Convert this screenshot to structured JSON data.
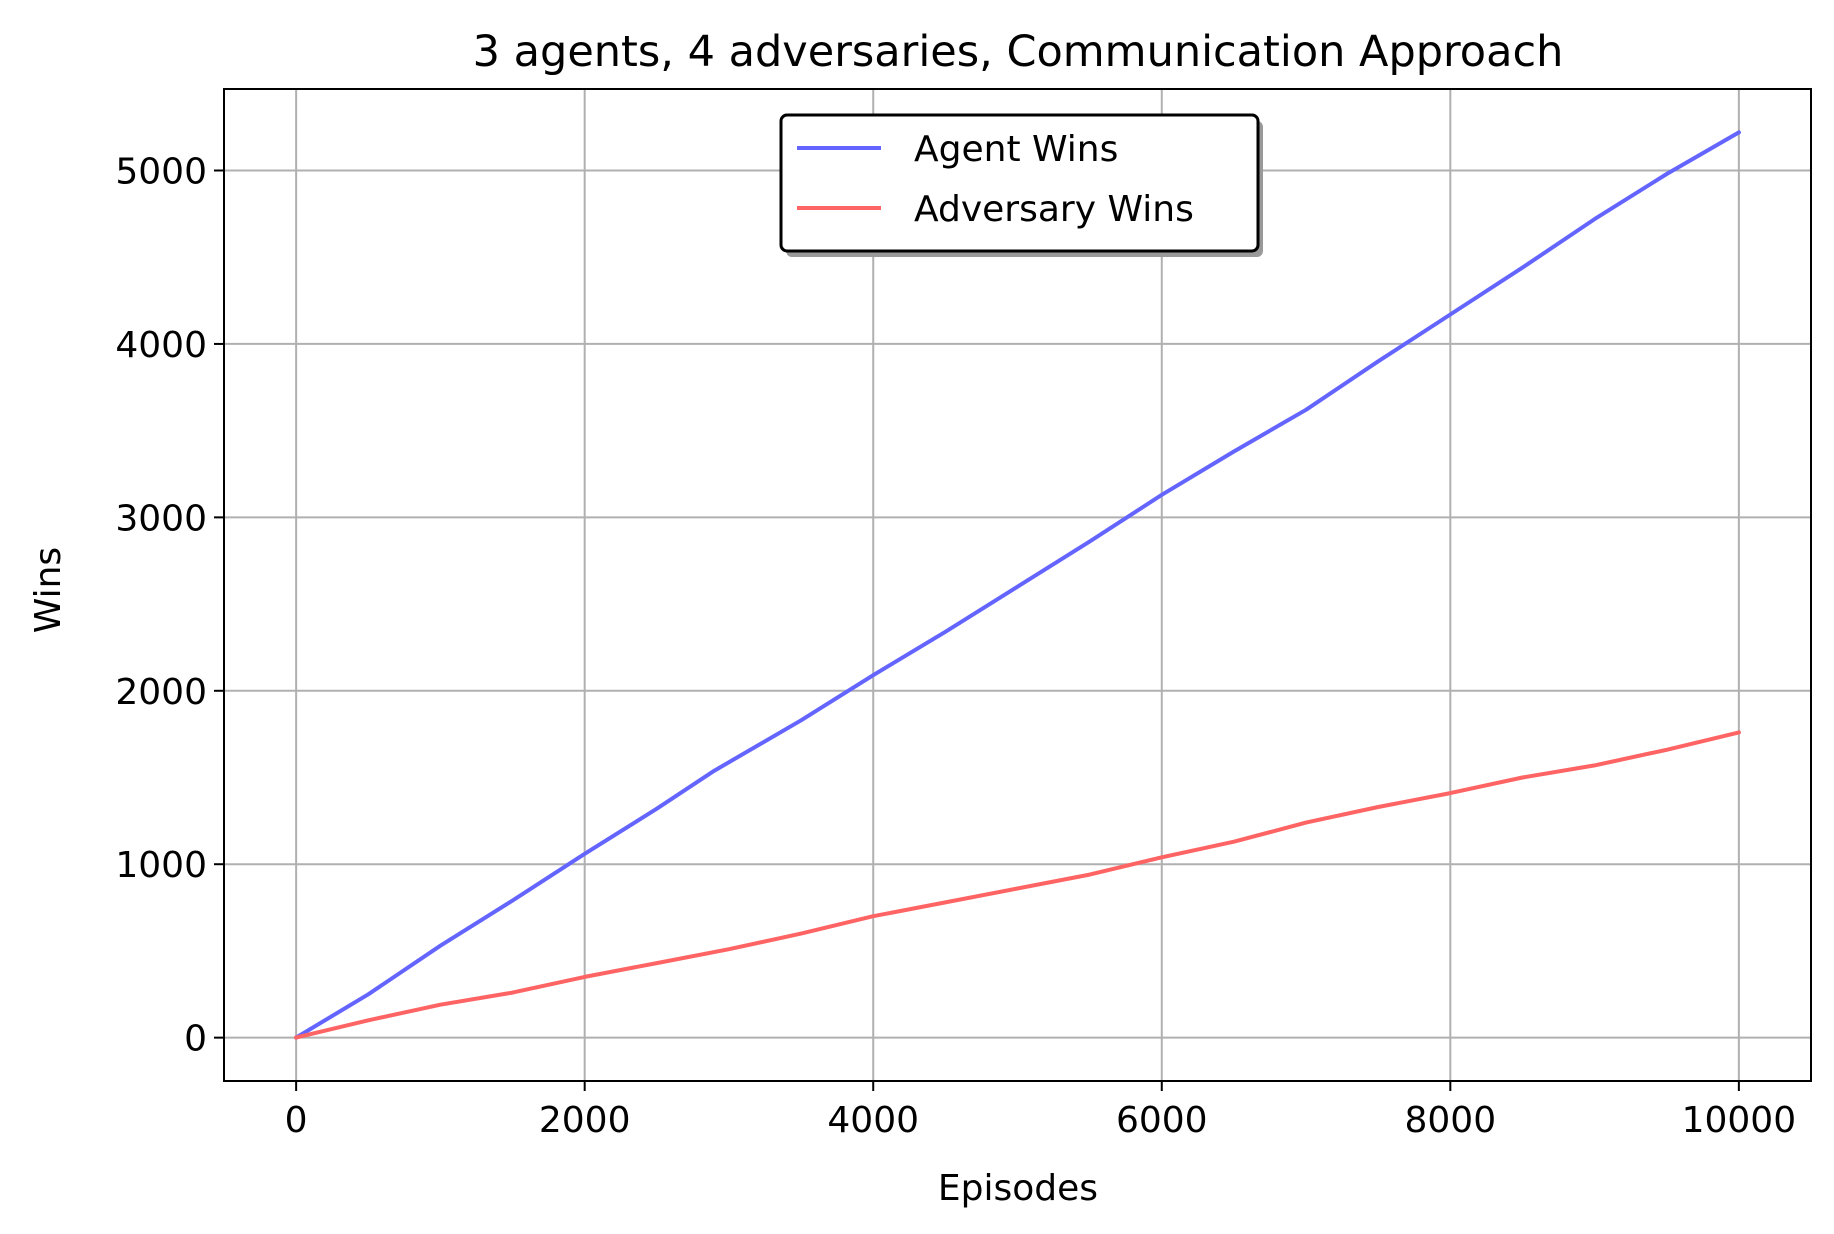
{
  "chart_data": {
    "type": "line",
    "title": "3 agents, 4 adversaries, Communication Approach",
    "xlabel": "Episodes",
    "ylabel": "Wins",
    "xlim": [
      -500,
      10500
    ],
    "ylim": [
      -250,
      5470
    ],
    "xticks": [
      0,
      2000,
      4000,
      6000,
      8000,
      10000
    ],
    "yticks": [
      0,
      1000,
      2000,
      3000,
      4000,
      5000
    ],
    "grid": true,
    "legend_position": "upper center",
    "series": [
      {
        "name": "Agent Wins",
        "color": "#6464ff",
        "x": [
          0,
          500,
          1000,
          1500,
          2000,
          2500,
          2900,
          3500,
          4000,
          4500,
          5000,
          5500,
          6000,
          6500,
          7000,
          7500,
          8000,
          8500,
          9000,
          9500,
          10000
        ],
        "y": [
          0,
          250,
          530,
          790,
          1060,
          1320,
          1540,
          1830,
          2090,
          2340,
          2600,
          2860,
          3130,
          3380,
          3620,
          3900,
          4170,
          4440,
          4720,
          4980,
          5220
        ]
      },
      {
        "name": "Adversary Wins",
        "color": "#ff6464",
        "x": [
          0,
          500,
          1000,
          1500,
          2000,
          2500,
          3000,
          3500,
          4000,
          4500,
          5000,
          5500,
          6000,
          6500,
          7000,
          7500,
          8000,
          8500,
          9000,
          9500,
          10000
        ],
        "y": [
          0,
          100,
          190,
          260,
          350,
          430,
          510,
          600,
          700,
          780,
          860,
          940,
          1040,
          1130,
          1240,
          1330,
          1410,
          1500,
          1570,
          1660,
          1760
        ]
      }
    ]
  }
}
